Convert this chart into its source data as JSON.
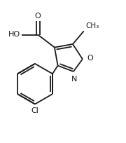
{
  "background": "#ffffff",
  "line_color": "#1a1a1a",
  "line_width": 1.3,
  "font_size": 8.0,
  "figsize": [
    1.8,
    2.04
  ],
  "dpi": 100,
  "xlim": [
    0.02,
    0.98
  ],
  "ylim": [
    0.05,
    0.97
  ]
}
